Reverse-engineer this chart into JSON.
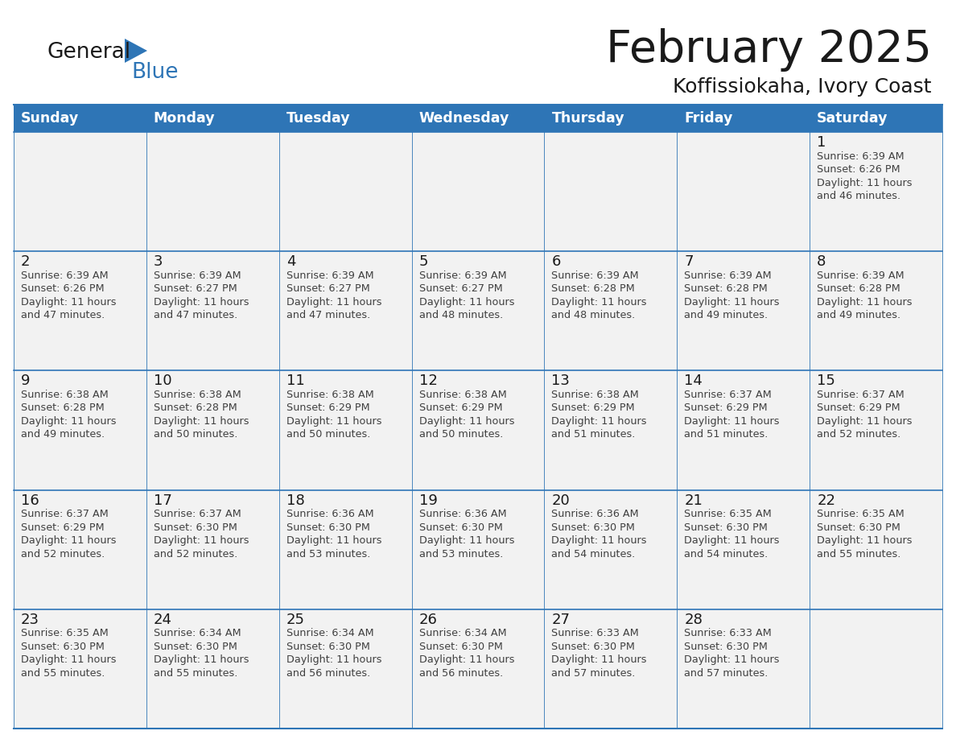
{
  "title": "February 2025",
  "subtitle": "Koffissiokaha, Ivory Coast",
  "header_bg": "#2E75B6",
  "header_text_color": "#FFFFFF",
  "cell_bg": "#F2F2F2",
  "cell_bg_white": "#FFFFFF",
  "cell_border_color": "#2E75B6",
  "day_number_color": "#1A1A1A",
  "info_text_color": "#404040",
  "days_of_week": [
    "Sunday",
    "Monday",
    "Tuesday",
    "Wednesday",
    "Thursday",
    "Friday",
    "Saturday"
  ],
  "title_color": "#1A1A1A",
  "subtitle_color": "#1A1A1A",
  "logo_general_color": "#1A1A1A",
  "logo_blue_color": "#2E75B6",
  "calendar_data": [
    [
      null,
      null,
      null,
      null,
      null,
      null,
      {
        "day": 1,
        "sunrise": "6:39 AM",
        "sunset": "6:26 PM",
        "daylight": "11 hours and 46 minutes."
      }
    ],
    [
      {
        "day": 2,
        "sunrise": "6:39 AM",
        "sunset": "6:26 PM",
        "daylight": "11 hours and 47 minutes."
      },
      {
        "day": 3,
        "sunrise": "6:39 AM",
        "sunset": "6:27 PM",
        "daylight": "11 hours and 47 minutes."
      },
      {
        "day": 4,
        "sunrise": "6:39 AM",
        "sunset": "6:27 PM",
        "daylight": "11 hours and 47 minutes."
      },
      {
        "day": 5,
        "sunrise": "6:39 AM",
        "sunset": "6:27 PM",
        "daylight": "11 hours and 48 minutes."
      },
      {
        "day": 6,
        "sunrise": "6:39 AM",
        "sunset": "6:28 PM",
        "daylight": "11 hours and 48 minutes."
      },
      {
        "day": 7,
        "sunrise": "6:39 AM",
        "sunset": "6:28 PM",
        "daylight": "11 hours and 49 minutes."
      },
      {
        "day": 8,
        "sunrise": "6:39 AM",
        "sunset": "6:28 PM",
        "daylight": "11 hours and 49 minutes."
      }
    ],
    [
      {
        "day": 9,
        "sunrise": "6:38 AM",
        "sunset": "6:28 PM",
        "daylight": "11 hours and 49 minutes."
      },
      {
        "day": 10,
        "sunrise": "6:38 AM",
        "sunset": "6:28 PM",
        "daylight": "11 hours and 50 minutes."
      },
      {
        "day": 11,
        "sunrise": "6:38 AM",
        "sunset": "6:29 PM",
        "daylight": "11 hours and 50 minutes."
      },
      {
        "day": 12,
        "sunrise": "6:38 AM",
        "sunset": "6:29 PM",
        "daylight": "11 hours and 50 minutes."
      },
      {
        "day": 13,
        "sunrise": "6:38 AM",
        "sunset": "6:29 PM",
        "daylight": "11 hours and 51 minutes."
      },
      {
        "day": 14,
        "sunrise": "6:37 AM",
        "sunset": "6:29 PM",
        "daylight": "11 hours and 51 minutes."
      },
      {
        "day": 15,
        "sunrise": "6:37 AM",
        "sunset": "6:29 PM",
        "daylight": "11 hours and 52 minutes."
      }
    ],
    [
      {
        "day": 16,
        "sunrise": "6:37 AM",
        "sunset": "6:29 PM",
        "daylight": "11 hours and 52 minutes."
      },
      {
        "day": 17,
        "sunrise": "6:37 AM",
        "sunset": "6:30 PM",
        "daylight": "11 hours and 52 minutes."
      },
      {
        "day": 18,
        "sunrise": "6:36 AM",
        "sunset": "6:30 PM",
        "daylight": "11 hours and 53 minutes."
      },
      {
        "day": 19,
        "sunrise": "6:36 AM",
        "sunset": "6:30 PM",
        "daylight": "11 hours and 53 minutes."
      },
      {
        "day": 20,
        "sunrise": "6:36 AM",
        "sunset": "6:30 PM",
        "daylight": "11 hours and 54 minutes."
      },
      {
        "day": 21,
        "sunrise": "6:35 AM",
        "sunset": "6:30 PM",
        "daylight": "11 hours and 54 minutes."
      },
      {
        "day": 22,
        "sunrise": "6:35 AM",
        "sunset": "6:30 PM",
        "daylight": "11 hours and 55 minutes."
      }
    ],
    [
      {
        "day": 23,
        "sunrise": "6:35 AM",
        "sunset": "6:30 PM",
        "daylight": "11 hours and 55 minutes."
      },
      {
        "day": 24,
        "sunrise": "6:34 AM",
        "sunset": "6:30 PM",
        "daylight": "11 hours and 55 minutes."
      },
      {
        "day": 25,
        "sunrise": "6:34 AM",
        "sunset": "6:30 PM",
        "daylight": "11 hours and 56 minutes."
      },
      {
        "day": 26,
        "sunrise": "6:34 AM",
        "sunset": "6:30 PM",
        "daylight": "11 hours and 56 minutes."
      },
      {
        "day": 27,
        "sunrise": "6:33 AM",
        "sunset": "6:30 PM",
        "daylight": "11 hours and 57 minutes."
      },
      {
        "day": 28,
        "sunrise": "6:33 AM",
        "sunset": "6:30 PM",
        "daylight": "11 hours and 57 minutes."
      },
      null
    ]
  ]
}
